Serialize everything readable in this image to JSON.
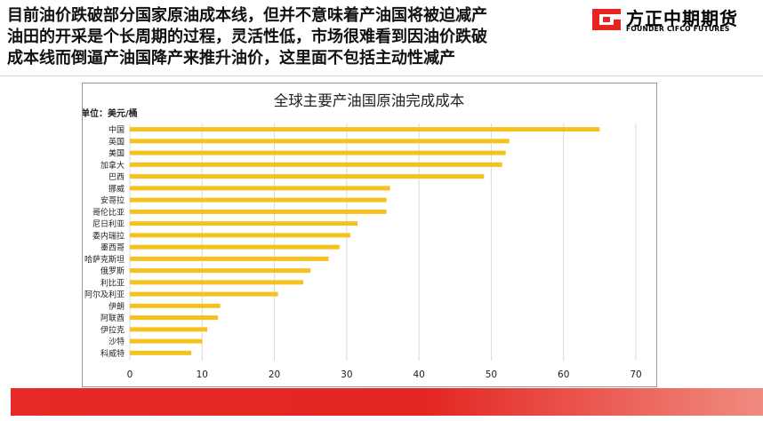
{
  "headline": {
    "lines": [
      "目前油价跌破部分国家原油成本线，但并不意味着产油国将被迫减产",
      "油田的开采是个长周期的过程，灵活性低，市场很难看到因油价跌破",
      "成本线而倒逼产油国降产来推升油价，这里面不包括主动性减产"
    ]
  },
  "logo": {
    "name_cn": "方正中期期货",
    "name_en": "FOUNDER CIFCO FUTURES",
    "icon": "founder-logo-mark-icon"
  },
  "colors": {
    "brand_red": "#e8231f",
    "bar_yellow": "#f5c11e",
    "footer_red": "#e52a27",
    "grid": "#d9d9d9",
    "text": "#222222"
  },
  "chart_data": {
    "type": "bar",
    "orientation": "horizontal",
    "title": "全球主要产油国原油完成成本",
    "unit_label": "单位：美元/桶",
    "xlim": [
      0,
      70
    ],
    "x_ticks": [
      0,
      10,
      20,
      30,
      40,
      50,
      60,
      70
    ],
    "grid": true,
    "legend": "none",
    "categories": [
      "中国",
      "英国",
      "美国",
      "加拿大",
      "巴西",
      "挪威",
      "安哥拉",
      "哥伦比亚",
      "尼日利亚",
      "委内瑞拉",
      "墨西哥",
      "哈萨克斯坦",
      "俄罗斯",
      "利比亚",
      "阿尔及利亚",
      "伊朗",
      "阿联酋",
      "伊拉克",
      "沙特",
      "科威特"
    ],
    "values": [
      65,
      52.5,
      52,
      51.5,
      49,
      36,
      35.5,
      35.5,
      31.5,
      30.5,
      29,
      27.5,
      25,
      24,
      20.5,
      12.5,
      12.2,
      10.7,
      10,
      8.5
    ]
  }
}
